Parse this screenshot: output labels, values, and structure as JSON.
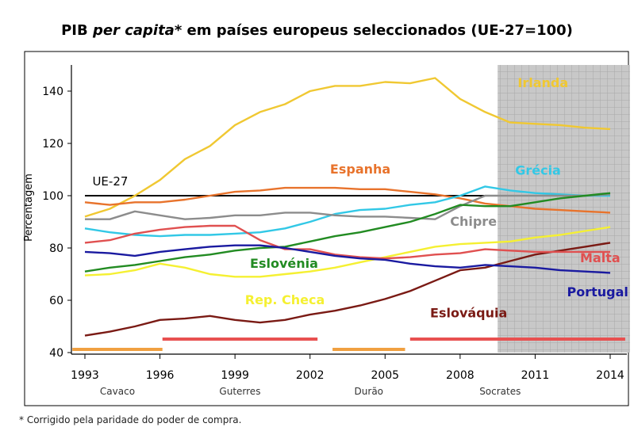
{
  "title": {
    "prefix": "PIB ",
    "italic": "per capita",
    "suffix": "* em países europeus seleccionados (UE-27=100)"
  },
  "footnote": "* Corrigido pela paridade do poder de compra.",
  "chart_data": {
    "type": "line",
    "ylabel": "Percentagem",
    "ylim": [
      40,
      150
    ],
    "yticks": [
      40,
      60,
      80,
      100,
      120,
      140
    ],
    "xlim": [
      1993,
      2014
    ],
    "xticks": [
      "1993",
      "1996",
      "1999",
      "2002",
      "2005",
      "2008",
      "2011",
      "2014"
    ],
    "grid": false,
    "shaded_region": {
      "from": 2009.5,
      "to": 2014.6,
      "pattern": "grid",
      "color": "#c8c8c8"
    },
    "years": [
      1993,
      1994,
      1995,
      1996,
      1997,
      1998,
      1999,
      2000,
      2001,
      2002,
      2003,
      2004,
      2005,
      2006,
      2007,
      2008,
      2009,
      2010,
      2011,
      2012,
      2013,
      2014
    ],
    "series": [
      {
        "name": "Irlanda",
        "color": "#f0c832",
        "label_pos": [
          2010.3,
          141.5
        ],
        "values": [
          92,
          95,
          100,
          106,
          114,
          119,
          127,
          132,
          135,
          140,
          142,
          142,
          143.5,
          143,
          145,
          137,
          132,
          128,
          127.5,
          127,
          126,
          125.5
        ]
      },
      {
        "name": "Espanha",
        "color": "#e8732c",
        "label_pos": [
          2002.8,
          108.5
        ],
        "values": [
          97.5,
          96.5,
          97.5,
          97.5,
          98.5,
          100,
          101.5,
          102,
          103,
          103,
          103,
          102.5,
          102.5,
          101.5,
          100.5,
          99,
          97,
          96,
          95,
          94.5,
          94,
          93.5
        ]
      },
      {
        "name": "Grécia",
        "color": "#32c8e6",
        "label_pos": [
          2010.2,
          108
        ],
        "values": [
          87.5,
          86,
          85,
          84.5,
          85,
          85,
          85.5,
          86,
          87.5,
          90,
          93,
          94.5,
          95,
          96.5,
          97.5,
          100,
          103.5,
          102,
          101,
          100.5,
          100,
          100
        ]
      },
      {
        "name": "Chipre",
        "color": "#8c8c8c",
        "label_pos": [
          2007.6,
          88.5
        ],
        "values": [
          91,
          91,
          94,
          92.5,
          91,
          91.5,
          92.5,
          92.5,
          93.5,
          93.5,
          92.5,
          92,
          92,
          91.5,
          91,
          96,
          100,
          100,
          100,
          100,
          100,
          100.5
        ]
      },
      {
        "name": "Eslovénia",
        "color": "#228b22",
        "label_pos": [
          1999.6,
          72.5
        ],
        "values": [
          71,
          72.5,
          73.5,
          75,
          76.5,
          77.5,
          79,
          80,
          80.5,
          82.5,
          84.5,
          86,
          88,
          90,
          93,
          96.5,
          96,
          96,
          97.5,
          99,
          100,
          101
        ]
      },
      {
        "name": "Rep. Checa",
        "color": "#f5f032",
        "label_pos": [
          1999.4,
          58.5
        ],
        "values": [
          69.5,
          70,
          71.5,
          74,
          72.5,
          70,
          69,
          69,
          70,
          71,
          72.5,
          74.5,
          76.5,
          78.5,
          80.5,
          81.5,
          82,
          82.5,
          84,
          85,
          86.5,
          88
        ]
      },
      {
        "name": "Eslováquia",
        "color": "#7a1a14",
        "label_pos": [
          2006.8,
          53.5
        ],
        "values": [
          46.5,
          48,
          50,
          52.5,
          53,
          54,
          52.5,
          51.5,
          52.5,
          54.5,
          56,
          58,
          60.5,
          63.5,
          67.5,
          71.5,
          72.5,
          75,
          77.5,
          79,
          80.5,
          82
        ]
      },
      {
        "name": "Malta",
        "color": "#e05050",
        "label_pos": [
          2013.6,
          74.5
        ],
        "values": [
          82,
          83,
          85.5,
          87,
          88,
          88.5,
          88.5,
          83,
          79.5,
          79.5,
          77.5,
          76.5,
          76,
          76.5,
          77.5,
          78,
          79.5,
          79,
          78.5,
          78.5,
          78.5,
          78.5
        ]
      },
      {
        "name": "Portugal",
        "color": "#1a1aa0",
        "label_pos": [
          2013.5,
          61.5
        ],
        "values": [
          78.5,
          78,
          77,
          78.5,
          79.5,
          80.5,
          81,
          81,
          80,
          78.5,
          77,
          76,
          75.5,
          74,
          73,
          72.5,
          73.5,
          73,
          72.5,
          71.5,
          71,
          70.5
        ]
      }
    ],
    "reference": {
      "name": "UE-27",
      "value": 100,
      "color": "#000000",
      "from": 1993,
      "to": 2009.5,
      "label_pos": [
        1993.3,
        104
      ]
    },
    "periods": [
      {
        "name": "Cavaco",
        "from": 1992.5,
        "to": 1996.1,
        "color": "#f0a040"
      },
      {
        "name": "Guterres",
        "from": 1996.1,
        "to": 2002.3,
        "color": "#e85050"
      },
      {
        "name": "Durão",
        "from": 2002.9,
        "to": 2005.8,
        "color": "#f0a040"
      },
      {
        "name": "Socrates",
        "from": 2006.0,
        "to": 2014.6,
        "color": "#e85050"
      }
    ]
  }
}
